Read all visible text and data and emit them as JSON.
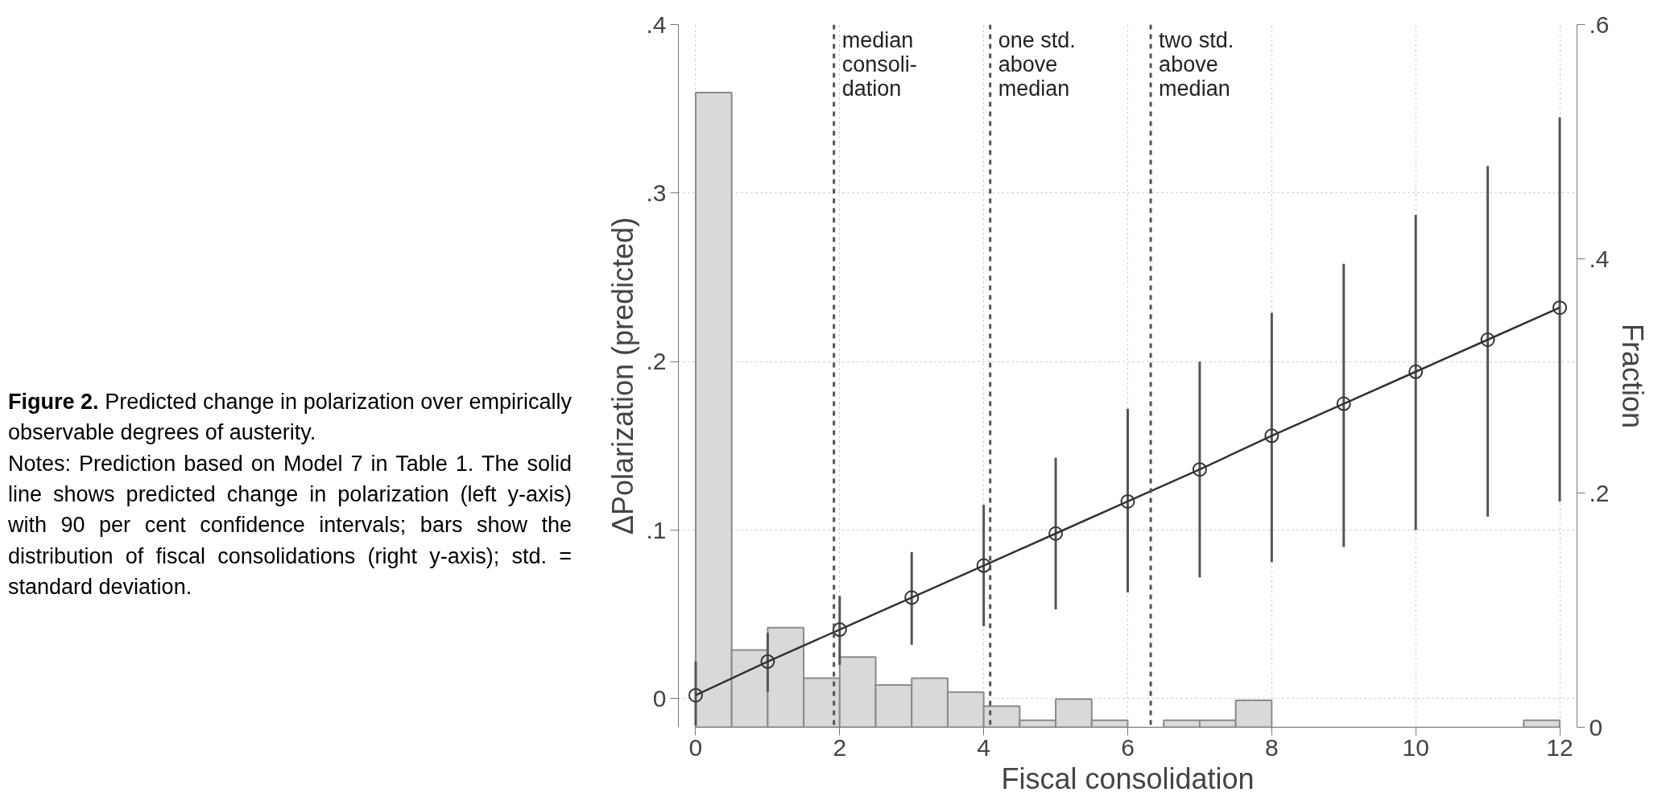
{
  "chart_data": {
    "type": "line",
    "title": "Figure 2. Predicted change in polarization over empirically observable degrees of austerity.",
    "annotations": [
      "Notes: Prediction based on Model 7 in Table 1. The solid line shows predicted change in polarization (left y-axis) with 90 per cent confidence intervals; bars show the distribution of fiscal consolidations (right y-axis); std. = standard deviation."
    ],
    "xlabel": "Fiscal consolidation",
    "ylabel": "ΔPolarization (predicted)",
    "y2label": "Fraction",
    "xlim": [
      -0.24,
      12.24
    ],
    "xticks": [
      0,
      2,
      4,
      6,
      8,
      10,
      12
    ],
    "ylim": [
      -0.017,
      0.4
    ],
    "yticks": [
      0,
      {
        "value": 0.1,
        "label": ".1"
      },
      {
        "value": 0.2,
        "label": ".2"
      },
      {
        "value": 0.3,
        "label": ".3"
      },
      {
        "value": 0.4,
        "label": ".4"
      }
    ],
    "y2lim": [
      0,
      0.6
    ],
    "y2ticks": [
      0,
      {
        "value": 0.2,
        "label": ".2"
      },
      {
        "value": 0.4,
        "label": ".4"
      },
      {
        "value": 0.6,
        "label": ".6"
      }
    ],
    "grid": true,
    "series": [
      {
        "type": "histogram",
        "axis": "y2",
        "color": "#d9d9d9",
        "bins": [
          0,
          0.5,
          1,
          1.5,
          2,
          2.5,
          3,
          3.5,
          4,
          4.5,
          5,
          5.5,
          6,
          6.5,
          7,
          7.5,
          8,
          8.5,
          9,
          9.5,
          10,
          10.5,
          11,
          11.5,
          12
        ],
        "values": [
          0.542,
          0.066,
          0.085,
          0.042,
          0.06,
          0.036,
          0.042,
          0.03,
          0.018,
          0.006,
          0.024,
          0.006,
          0,
          0.006,
          0.006,
          0.023,
          0,
          0,
          0,
          0,
          0,
          0,
          0,
          0.006
        ]
      },
      {
        "color": "#333333",
        "marker": "circle",
        "line_style": "solid",
        "x": [
          0,
          1,
          2,
          3,
          4,
          5,
          6,
          7,
          8,
          9,
          10,
          11,
          12
        ],
        "values": [
          0.002,
          0.022,
          0.041,
          0.06,
          0.079,
          0.098,
          0.117,
          0.136,
          0.156,
          0.175,
          0.194,
          0.213,
          0.232
        ],
        "errors": [
          [
            -0.016,
            0.022
          ],
          [
            0.004,
            0.039
          ],
          [
            0.02,
            0.061
          ],
          [
            0.032,
            0.087
          ],
          [
            0.043,
            0.115
          ],
          [
            0.053,
            0.143
          ],
          [
            0.063,
            0.172
          ],
          [
            0.072,
            0.2
          ],
          [
            0.081,
            0.229
          ],
          [
            0.09,
            0.258
          ],
          [
            0.1,
            0.287
          ],
          [
            0.108,
            0.316
          ],
          [
            0.117,
            0.345
          ]
        ]
      }
    ],
    "ref_lines": [
      {
        "axis": "x",
        "value": 1.92,
        "label": "median\nconsoli-\ndation",
        "line_style": "dashed",
        "color": "#555555"
      },
      {
        "axis": "x",
        "value": 4.09,
        "label": "one std.\nabove\nmedian",
        "line_style": "dashed",
        "color": "#555555"
      },
      {
        "axis": "x",
        "value": 6.32,
        "label": "two std.\nabove\nmedian",
        "line_style": "dashed",
        "color": "#555555"
      }
    ]
  }
}
